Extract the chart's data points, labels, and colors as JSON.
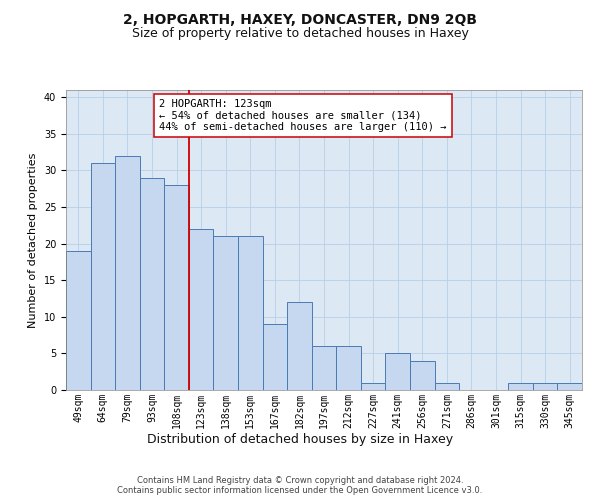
{
  "title": "2, HOPGARTH, HAXEY, DONCASTER, DN9 2QB",
  "subtitle": "Size of property relative to detached houses in Haxey",
  "xlabel": "Distribution of detached houses by size in Haxey",
  "ylabel": "Number of detached properties",
  "categories": [
    "49sqm",
    "64sqm",
    "79sqm",
    "93sqm",
    "108sqm",
    "123sqm",
    "138sqm",
    "153sqm",
    "167sqm",
    "182sqm",
    "197sqm",
    "212sqm",
    "227sqm",
    "241sqm",
    "256sqm",
    "271sqm",
    "286sqm",
    "301sqm",
    "315sqm",
    "330sqm",
    "345sqm"
  ],
  "values": [
    19,
    31,
    32,
    29,
    28,
    22,
    21,
    21,
    9,
    12,
    6,
    6,
    1,
    5,
    4,
    1,
    0,
    0,
    1,
    1,
    1
  ],
  "bar_color": "#c5d8f0",
  "bar_edge_color": "#4a7ab5",
  "vline_color": "#cc0000",
  "vline_index": 5,
  "annotation_text": "2 HOPGARTH: 123sqm\n← 54% of detached houses are smaller (134)\n44% of semi-detached houses are larger (110) →",
  "annotation_box_facecolor": "#ffffff",
  "annotation_box_edgecolor": "#cc0000",
  "ylim": [
    0,
    41
  ],
  "yticks": [
    0,
    5,
    10,
    15,
    20,
    25,
    30,
    35,
    40
  ],
  "grid_color": "#b8cfe8",
  "background_color": "#dce9f5",
  "title_fontsize": 10,
  "subtitle_fontsize": 9,
  "xlabel_fontsize": 9,
  "ylabel_fontsize": 8,
  "tick_fontsize": 7,
  "annotation_fontsize": 7.5,
  "footer_fontsize": 6,
  "footer": "Contains HM Land Registry data © Crown copyright and database right 2024.\nContains public sector information licensed under the Open Government Licence v3.0."
}
